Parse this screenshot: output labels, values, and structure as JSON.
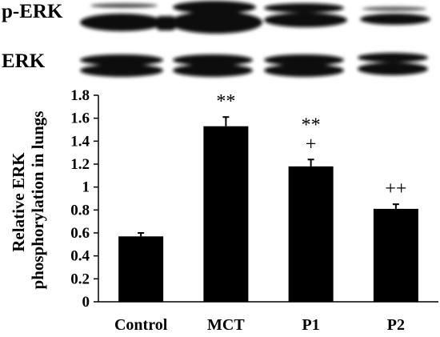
{
  "blot": {
    "rows": [
      {
        "label": "p-ERK"
      },
      {
        "label": "ERK"
      }
    ]
  },
  "chart_data": {
    "type": "bar",
    "categories": [
      "Control",
      "MCT",
      "P1",
      "P2"
    ],
    "values": [
      0.57,
      1.53,
      1.18,
      0.81
    ],
    "errors": [
      0.03,
      0.08,
      0.06,
      0.04
    ],
    "annotations": [
      [],
      [
        "**"
      ],
      [
        "**",
        "+"
      ],
      [
        "++"
      ]
    ],
    "ylabel": "Relative ERK phosphorylation in lungs",
    "ylabel_lines": [
      "Relative ERK",
      "phosphorylation in lungs"
    ],
    "ylim": [
      0,
      1.8
    ],
    "yticks": [
      "0",
      "0.2",
      "0.4",
      "0.6",
      "0.8",
      "1",
      "1.2",
      "1.4",
      "1.6",
      "1.8"
    ],
    "grid": false,
    "bar_color": "#000000"
  }
}
